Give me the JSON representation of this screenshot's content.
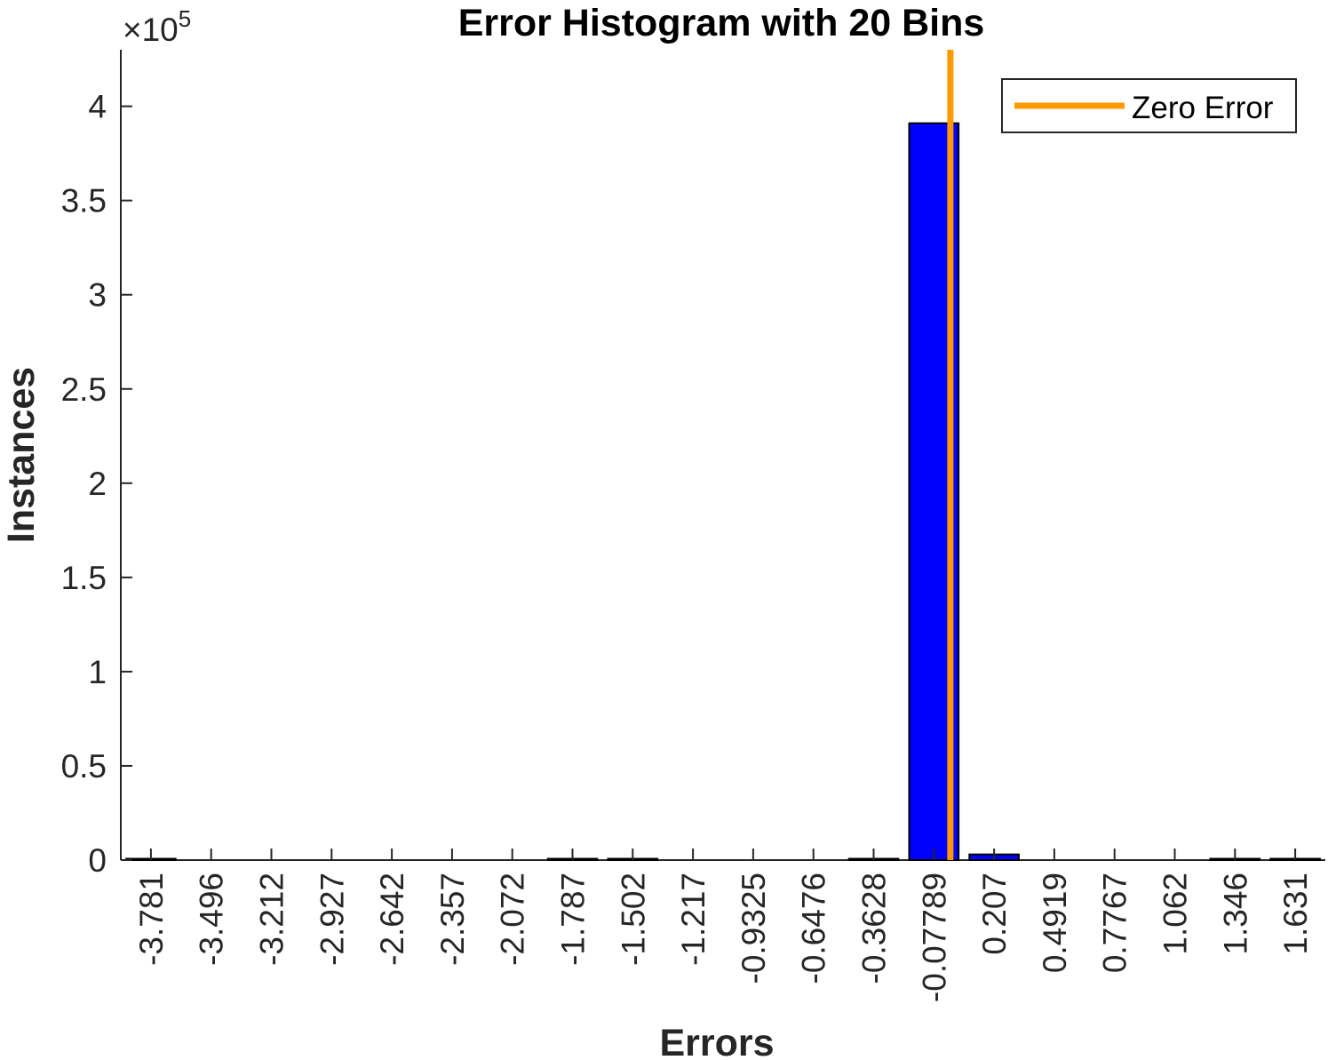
{
  "chart_data": {
    "type": "bar",
    "title": "Error Histogram with 20 Bins",
    "xlabel": "Errors",
    "ylabel": "Instances",
    "y_exponent_label": "×10",
    "y_exponent_power": "5",
    "categories": [
      "-3.781",
      "-3.496",
      "-3.212",
      "-2.927",
      "-2.642",
      "-2.357",
      "-2.072",
      "-1.787",
      "-1.502",
      "-1.217",
      "-0.9325",
      "-0.6476",
      "-0.3628",
      "-0.07789",
      "0.207",
      "0.4919",
      "0.7767",
      "1.062",
      "1.346",
      "1.631"
    ],
    "values": [
      300,
      0,
      0,
      0,
      0,
      0,
      0,
      500,
      400,
      0,
      0,
      0,
      700,
      391000,
      3000,
      0,
      0,
      0,
      400,
      300
    ],
    "ylim": [
      0,
      430000
    ],
    "yticks": [
      0,
      50000,
      100000,
      150000,
      200000,
      250000,
      300000,
      350000,
      400000
    ],
    "ytick_labels": [
      "0",
      "0.5",
      "1",
      "1.5",
      "2",
      "2.5",
      "3",
      "3.5",
      "4"
    ],
    "zero_error_x": 0,
    "legend": {
      "entries": [
        "Zero Error"
      ],
      "location": "top-right"
    },
    "colors": {
      "bars": "#0000ff",
      "bar_edge": "#000000",
      "zero_line": "#ff9900"
    },
    "grid": false
  }
}
